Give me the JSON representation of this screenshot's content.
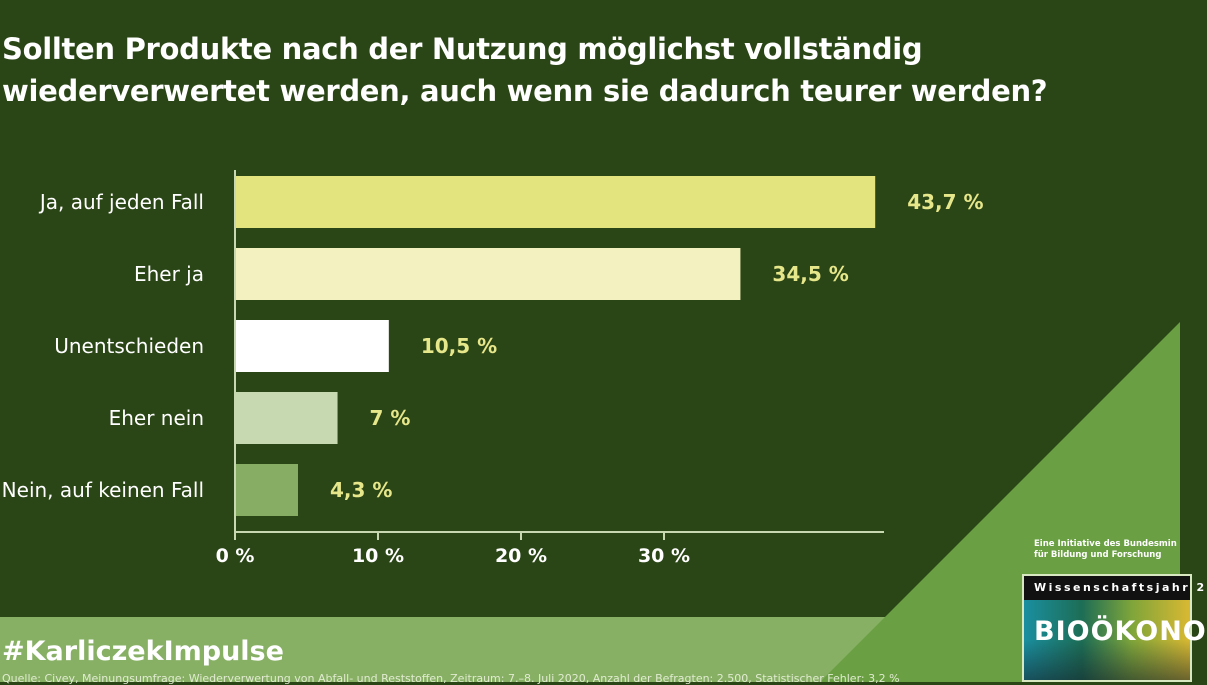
{
  "title_line1": "Sollten Produkte nach der Nutzung möglichst vollständig",
  "title_line2": "wiederverwertet werden, auch wenn sie dadurch teurer werden?",
  "hashtag": "#KarliczekImpulse",
  "source": "Quelle: Civey, Meinungsumfrage: Wiederverwertung von Abfall- und Reststoffen, Zeitraum: 7.–8. Juli 2020, Anzahl der Befragten: 2.500, Statistischer Fehler: 3,2 %",
  "initiative_line1": "Eine Initiative des Bundesmin",
  "initiative_line2": "für Bildung und Forschung",
  "logo_top": "Wissenschaftsjahr 2",
  "logo_word": "BIOÖKONO",
  "colors": {
    "background": "#2a4516",
    "band": "#87b065",
    "triangle": "#6aa043",
    "value_label": "#e6e68a"
  },
  "chart_data": {
    "type": "bar",
    "orientation": "horizontal",
    "title": "Sollten Produkte nach der Nutzung möglichst vollständig wiederverwertet werden, auch wenn sie dadurch teurer werden?",
    "categories": [
      "Ja, auf jeden Fall",
      "Eher ja",
      "Unentschieden",
      "Eher nein",
      "Nein, auf keinen Fall"
    ],
    "values": [
      43.7,
      34.5,
      10.5,
      7,
      4.3
    ],
    "value_labels": [
      "43,7 %",
      "34,5 %",
      "10,5 %",
      "7 %",
      "4,3 %"
    ],
    "bar_colors": [
      "#e4e47e",
      "#f3f1c0",
      "#ffffff",
      "#c6d9b0",
      "#86ad63"
    ],
    "xticks": [
      0,
      10,
      20,
      30
    ],
    "xtick_labels": [
      "0 %",
      "10 %",
      "20 %",
      "30 %"
    ],
    "xlim": [
      0,
      45
    ],
    "grid": false,
    "legend": "none"
  }
}
